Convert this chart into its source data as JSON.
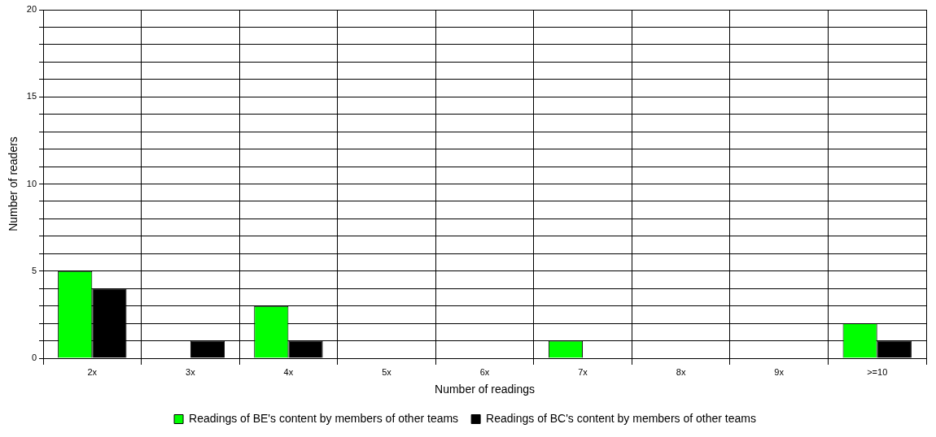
{
  "chart_data": {
    "type": "bar",
    "xlabel": "Number of readings",
    "ylabel": "Number of readers",
    "categories": [
      "2x",
      "3x",
      "4x",
      "5x",
      "6x",
      "7x",
      "8x",
      "9x",
      ">=10"
    ],
    "series": [
      {
        "name": "Readings of BE's content by members of other teams",
        "color": "#00ff00",
        "values": [
          5,
          0,
          3,
          0,
          0,
          1,
          0,
          0,
          2
        ]
      },
      {
        "name": "Readings of BC's content by members of other teams",
        "color": "#000000",
        "values": [
          4,
          1,
          1,
          0,
          0,
          0,
          0,
          0,
          1
        ]
      }
    ],
    "ylim": [
      0,
      20
    ],
    "yticks": [
      0,
      {
        "value": 1,
        "label": null
      },
      {
        "value": 2,
        "label": null
      },
      {
        "value": 3,
        "label": null
      },
      {
        "value": 4,
        "label": null
      },
      5,
      {
        "value": 6,
        "label": null
      },
      {
        "value": 7,
        "label": null
      },
      {
        "value": 8,
        "label": null
      },
      {
        "value": 9,
        "label": null
      },
      10,
      {
        "value": 11,
        "label": null
      },
      {
        "value": 12,
        "label": null
      },
      {
        "value": 13,
        "label": null
      },
      {
        "value": 14,
        "label": null
      },
      15,
      {
        "value": 16,
        "label": null
      },
      {
        "value": 17,
        "label": null
      },
      {
        "value": 18,
        "label": null
      },
      {
        "value": 19,
        "label": null
      },
      20
    ],
    "grid": true,
    "legend": "bottom"
  }
}
